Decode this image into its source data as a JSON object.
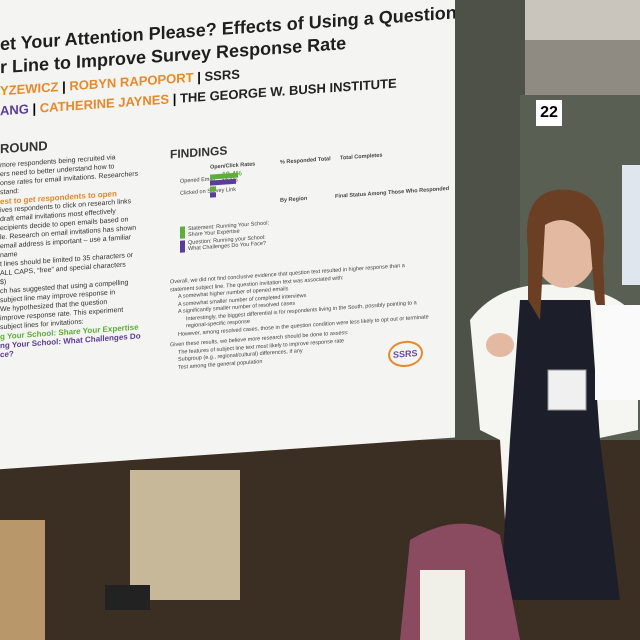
{
  "poster": {
    "title_lines": [
      "et Your Attention Please? Effects of Using a Question in the Email",
      "r Line to Improve Survey Response Rate"
    ],
    "authors": [
      {
        "name1": "YZEWICZ",
        "name2": "ROBYN RAPOPORT",
        "org": "SSRS"
      },
      {
        "name1": "ANG",
        "name2": "CATHERINE JAYNES",
        "org": "THE GEORGE W. BUSH INSTITUTE"
      }
    ],
    "background": {
      "heading": "ROUND",
      "lines": [
        "more respondents being recruited via",
        "ers need to better understand how to",
        "onse rates for email invitations. Researchers",
        "stand:",
        "est to get respondents to open",
        "ives respondents to click on research links",
        "draft email invitations most effectively",
        "ecipients decide to open emails based on",
        "le.  Research on email invitations has shown",
        "email address is important – use a familiar",
        "name",
        "t lines should be limited to 35 characters or",
        "ALL CAPS, “free” and special characters",
        "$)",
        "ch has suggested that using a compelling",
        "subject line may improve response in",
        "We hypothesized that the question",
        "improve response rate. This experiment",
        "subject lines for invitations:",
        "g Your School: Share Your Expertise",
        "ng Your School: What Challenges Do",
        "ce?"
      ]
    },
    "findings": {
      "heading": "FINDINGS",
      "chart_titles": [
        "Open/Click Rates",
        "% Responded Total",
        "Total Completes",
        "By Region",
        "Final Status Among Those Who Responded"
      ],
      "chart_labels": [
        "Opened Email",
        "Clicked on Survey Link",
        "19.4%",
        "18.1%"
      ],
      "legend": [
        "Statement: Running Your School: Share Your Expertise",
        "Question: Running your School: What Challenges Do You Face?"
      ],
      "text": [
        "Overall, we did not find conclusive evidence that question text resulted in higher response than a",
        "statement subject line. The question invitation text was associated with:",
        "A somewhat higher number of opened emails",
        "A somewhat smaller number of completed interviews",
        "A significantly smaller number of resolved cases",
        "Interestingly, the biggest differential is for respondents living in the South, possibly pointing to a",
        "regional-specific response",
        "However, among resolved cases, those in the question condition were less likely to opt out or terminate",
        "Given these results, we believe more research should be done to assess:",
        "The features of subject line text most likely to improve response rate",
        "Subgroup (e.g., regional/cultural) differences, if any",
        "Test among the general population"
      ]
    },
    "logo": "SSRS"
  },
  "booth_number": "22"
}
